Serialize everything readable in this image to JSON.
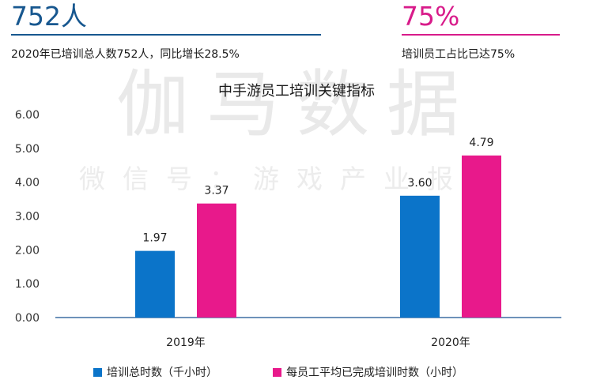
{
  "stats": [
    {
      "value": "752人",
      "description": "2020年已培训总人数752人，同比增长28.5%",
      "color": "#17578f"
    },
    {
      "value": "75%",
      "description": "培训员工占比已达75%",
      "color": "#d81b8a"
    }
  ],
  "watermark": {
    "title": "伽马数据",
    "subtitle": "微信号：游戏产业报告"
  },
  "chart_data": {
    "type": "bar",
    "title": "中手游员工培训关键指标",
    "categories": [
      "2019年",
      "2020年"
    ],
    "series": [
      {
        "name": "培训总时数（千小时）",
        "values": [
          1.97,
          3.6
        ],
        "labels": [
          "1.97",
          "3.60"
        ],
        "color": "#0b74c9"
      },
      {
        "name": "每员工平均已完成培训时数（小时）",
        "values": [
          3.37,
          4.79
        ],
        "labels": [
          "3.37",
          "4.79"
        ],
        "color": "#e8198b"
      }
    ],
    "yticks": [
      "0.00",
      "1.00",
      "2.00",
      "3.00",
      "4.00",
      "5.00",
      "6.00"
    ],
    "ylim": [
      0,
      6
    ],
    "xlabel": "",
    "ylabel": "",
    "grid": false,
    "legend": "bottom"
  }
}
